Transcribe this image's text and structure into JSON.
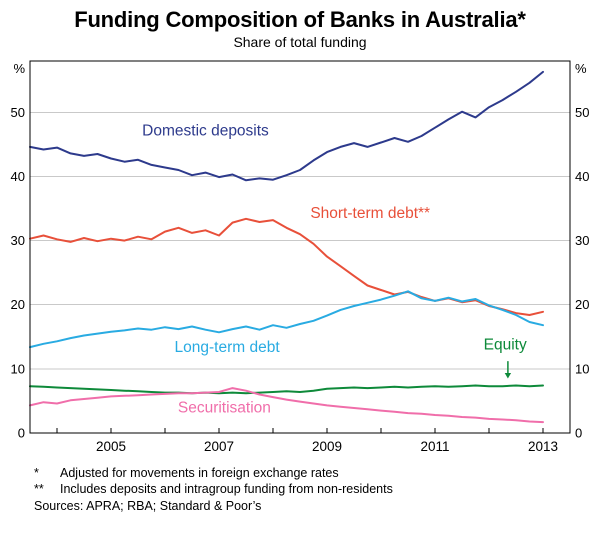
{
  "page": {
    "title": "Funding Composition of Banks in Australia*",
    "subtitle": "Share of total funding"
  },
  "footnotes": [
    {
      "marker": "*",
      "text": "Adjusted for movements in foreign exchange rates"
    },
    {
      "marker": "**",
      "text": "Includes deposits and intragroup funding from non-residents"
    }
  ],
  "sources": "Sources: APRA; RBA; Standard & Poor’s",
  "chart_data": {
    "type": "line",
    "title": "Funding Composition of Banks in Australia*",
    "subtitle": "Share of total funding",
    "y_unit": "%",
    "ylim": [
      0,
      58
    ],
    "yticks": [
      0,
      10,
      20,
      30,
      40,
      50
    ],
    "xlim": [
      2003.5,
      2013.5
    ],
    "xticks": [
      2004,
      2005,
      2006,
      2007,
      2008,
      2009,
      2010,
      2011,
      2012,
      2013
    ],
    "xtick_labels": [
      2005,
      2007,
      2009,
      2011,
      2013
    ],
    "grid": "horizontal",
    "x_start": 2003.5,
    "x_step": 0.25,
    "colors": {
      "grid": "#c9c9c9",
      "frame": "#000000",
      "text": "#000000"
    },
    "series": [
      {
        "name": "Domestic deposits",
        "color": "#2d3a8c",
        "label": {
          "text": "Domestic deposits",
          "x": 2006.75,
          "y": 46.4
        },
        "values": [
          44.6,
          44.2,
          44.5,
          43.6,
          43.2,
          43.5,
          42.8,
          42.3,
          42.6,
          41.8,
          41.4,
          41.0,
          40.2,
          40.6,
          39.9,
          40.3,
          39.4,
          39.7,
          39.5,
          40.2,
          41.0,
          42.5,
          43.8,
          44.6,
          45.2,
          44.6,
          45.3,
          46.0,
          45.4,
          46.3,
          47.6,
          48.9,
          50.1,
          49.2,
          50.8,
          51.9,
          53.2,
          54.6,
          56.3
        ]
      },
      {
        "name": "Short-term debt**",
        "color": "#e8503a",
        "label": {
          "text": "Short-term debt**",
          "x": 2009.8,
          "y": 33.5
        },
        "values": [
          30.3,
          30.8,
          30.2,
          29.8,
          30.4,
          29.9,
          30.3,
          30.0,
          30.6,
          30.2,
          31.4,
          32.0,
          31.2,
          31.6,
          30.8,
          32.8,
          33.4,
          32.9,
          33.2,
          32.0,
          31.0,
          29.5,
          27.5,
          26.0,
          24.5,
          23.0,
          22.3,
          21.6,
          22.0,
          21.2,
          20.6,
          21.0,
          20.4,
          20.7,
          19.8,
          19.3,
          18.7,
          18.4,
          18.9
        ]
      },
      {
        "name": "Long-term debt",
        "color": "#29abe2",
        "label": {
          "text": "Long-term debt",
          "x": 2007.15,
          "y": 12.6
        },
        "values": [
          13.4,
          13.9,
          14.3,
          14.8,
          15.2,
          15.5,
          15.8,
          16.0,
          16.3,
          16.1,
          16.5,
          16.2,
          16.6,
          16.1,
          15.7,
          16.2,
          16.6,
          16.1,
          16.8,
          16.4,
          17.0,
          17.5,
          18.3,
          19.2,
          19.8,
          20.3,
          20.8,
          21.4,
          22.1,
          21.0,
          20.6,
          21.1,
          20.5,
          20.9,
          19.9,
          19.2,
          18.4,
          17.3,
          16.8
        ]
      },
      {
        "name": "Equity",
        "color": "#0e8a3a",
        "label": {
          "text": "Equity",
          "x": 2012.3,
          "y": 13.0,
          "arrow": {
            "x": 2012.35,
            "from": 11.2,
            "to": 8.5
          }
        },
        "values": [
          7.3,
          7.2,
          7.1,
          7.0,
          6.9,
          6.8,
          6.7,
          6.6,
          6.5,
          6.4,
          6.3,
          6.3,
          6.2,
          6.3,
          6.2,
          6.3,
          6.2,
          6.3,
          6.4,
          6.5,
          6.4,
          6.6,
          6.9,
          7.0,
          7.1,
          7.0,
          7.1,
          7.2,
          7.1,
          7.2,
          7.3,
          7.2,
          7.3,
          7.4,
          7.3,
          7.3,
          7.4,
          7.3,
          7.4
        ]
      },
      {
        "name": "Securitisation",
        "color": "#f06eaa",
        "label": {
          "text": "Securitisation",
          "x": 2007.1,
          "y": 3.2
        },
        "values": [
          4.3,
          4.8,
          4.6,
          5.1,
          5.3,
          5.5,
          5.7,
          5.8,
          5.9,
          6.0,
          6.1,
          6.2,
          6.2,
          6.3,
          6.4,
          7.0,
          6.6,
          6.0,
          5.6,
          5.2,
          4.9,
          4.6,
          4.3,
          4.1,
          3.9,
          3.7,
          3.5,
          3.3,
          3.1,
          3.0,
          2.8,
          2.7,
          2.5,
          2.4,
          2.2,
          2.1,
          2.0,
          1.8,
          1.7
        ]
      }
    ]
  }
}
